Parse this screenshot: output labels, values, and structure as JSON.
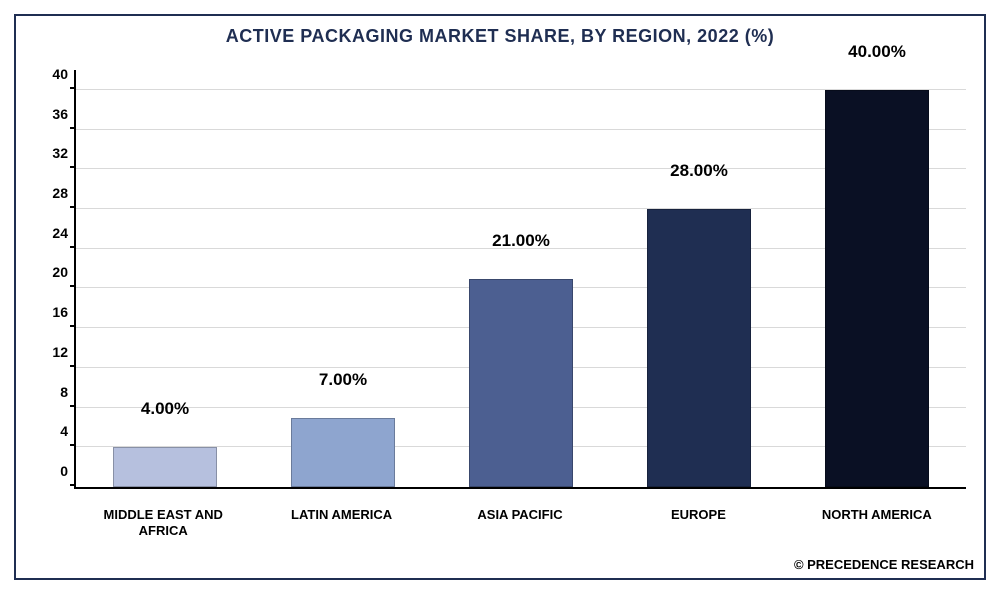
{
  "chart": {
    "type": "bar",
    "title": "ACTIVE PACKAGING MARKET SHARE, BY REGION, 2022 (%)",
    "title_fontsize": 18,
    "title_color": "#1f2e52",
    "categories": [
      "MIDDLE EAST AND AFRICA",
      "LATIN AMERICA",
      "ASIA PACIFIC",
      "EUROPE",
      "NORTH AMERICA"
    ],
    "values": [
      4.0,
      7.0,
      21.0,
      28.0,
      40.0
    ],
    "value_labels": [
      "4.00%",
      "7.00%",
      "21.00%",
      "28.00%",
      "40.00%"
    ],
    "bar_colors": [
      "#b6c0de",
      "#8ea5cf",
      "#4c5f91",
      "#1f2e52",
      "#0a1024"
    ],
    "ylim": [
      0,
      42
    ],
    "yticks": [
      0,
      4,
      8,
      12,
      16,
      20,
      24,
      28,
      32,
      36,
      40
    ],
    "ytick_labels": [
      "0",
      "4",
      "8",
      "12",
      "16",
      "20",
      "24",
      "28",
      "32",
      "36",
      "40"
    ],
    "grid_color": "#d9d9d9",
    "axis_color": "#000000",
    "background_color": "#ffffff",
    "border_color": "#1f2e52",
    "bar_width_pct": 58,
    "value_label_fontsize": 17,
    "xlabel_fontsize": 13,
    "ytick_fontsize": 14,
    "attribution": "© PRECEDENCE RESEARCH",
    "attribution_fontsize": 13
  }
}
